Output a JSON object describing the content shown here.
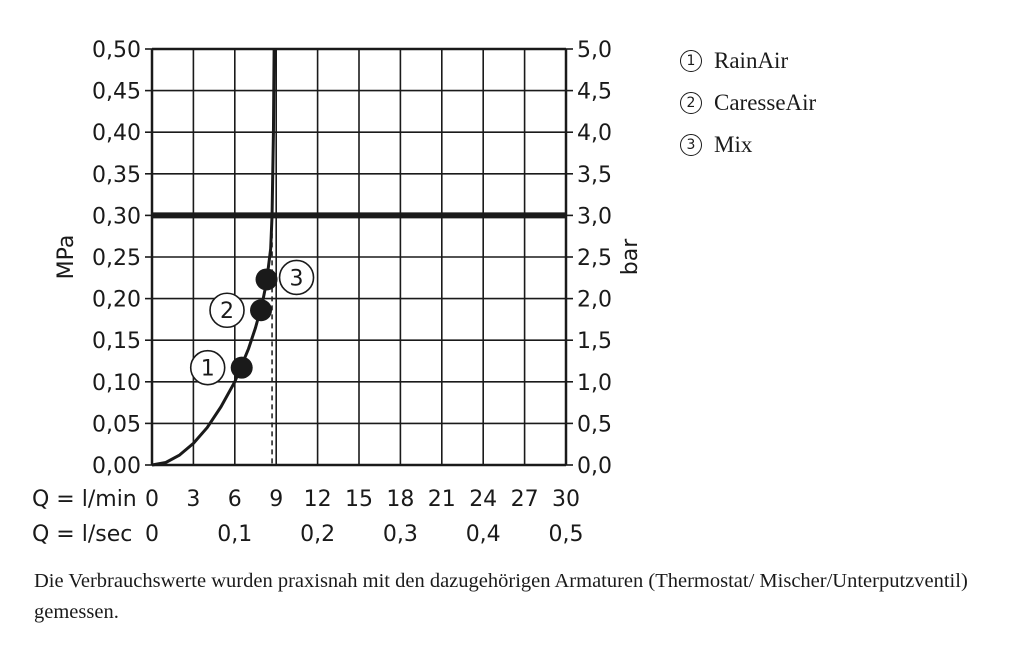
{
  "chart_data": {
    "type": "line",
    "y_left": {
      "label": "MPa",
      "ticks": [
        "0,00",
        "0,05",
        "0,10",
        "0,15",
        "0,20",
        "0,25",
        "0,30",
        "0,35",
        "0,40",
        "0,45",
        "0,50"
      ],
      "range": [
        0,
        0.5
      ]
    },
    "y_right": {
      "label": "bar",
      "ticks": [
        "0,0",
        "0,5",
        "1,0",
        "1,5",
        "2,0",
        "2,5",
        "3,0",
        "3,5",
        "4,0",
        "4,5",
        "5,0"
      ],
      "range": [
        0,
        5
      ]
    },
    "x_primary": {
      "label": "Q = l/min",
      "ticks": [
        "0",
        "3",
        "6",
        "9",
        "12",
        "15",
        "18",
        "21",
        "24",
        "27",
        "30"
      ],
      "range": [
        0,
        30
      ]
    },
    "x_secondary": {
      "label": "Q = l/sec",
      "ticks": [
        {
          "text": "0",
          "value": 0
        },
        {
          "text": "0,1",
          "value": 0.1
        },
        {
          "text": "0,2",
          "value": 0.2
        },
        {
          "text": "0,3",
          "value": 0.3
        },
        {
          "text": "0,4",
          "value": 0.4
        },
        {
          "text": "0,5",
          "value": 0.5
        }
      ]
    },
    "grid": true,
    "reference_line_mpa": 0.3,
    "reference_flow_lmin": 8.7,
    "curve": {
      "x": [
        0,
        1,
        2,
        3,
        4,
        5,
        6,
        7,
        7.5,
        8,
        8.3,
        8.6,
        8.7,
        8.8,
        8.85
      ],
      "y": [
        0,
        0.003,
        0.012,
        0.026,
        0.045,
        0.07,
        0.1,
        0.14,
        0.165,
        0.195,
        0.22,
        0.26,
        0.3,
        0.4,
        0.5
      ]
    },
    "markers": [
      {
        "id": "1",
        "x": 6.5,
        "y": 0.117
      },
      {
        "id": "2",
        "x": 7.9,
        "y": 0.186
      },
      {
        "id": "3",
        "x": 8.3,
        "y": 0.223
      }
    ]
  },
  "legend": [
    {
      "num": "1",
      "label": "RainAir"
    },
    {
      "num": "2",
      "label": "CaresseAir"
    },
    {
      "num": "3",
      "label": "Mix"
    }
  ],
  "footnote": "Die Verbrauchswerte wurden praxisnah mit den dazugehörigen Armaturen (Thermostat/ Mischer/Unterputzventil) gemessen."
}
